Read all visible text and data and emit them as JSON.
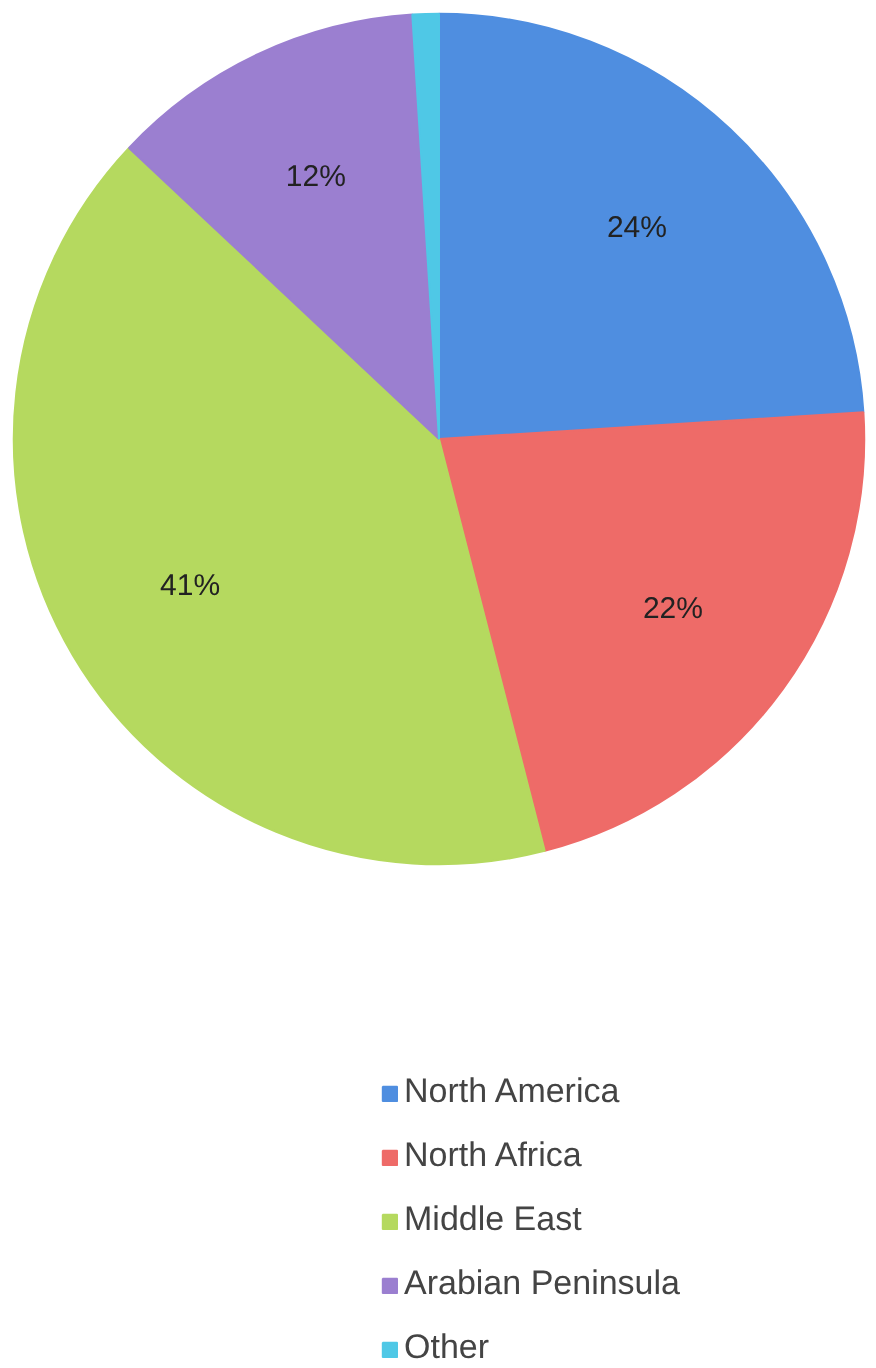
{
  "chart_data": {
    "type": "pie",
    "categories": [
      "North America",
      "North Africa",
      "Middle East",
      "Arabian Peninsula",
      "Other"
    ],
    "values": [
      24,
      22,
      41,
      12,
      1
    ],
    "colors": [
      "#4f8ee0",
      "#ee6b68",
      "#b5d95f",
      "#9b7fd0",
      "#4fc8e6"
    ],
    "value_labels": [
      "24%",
      "22%",
      "41%",
      "12%",
      null
    ],
    "legend": "bottom"
  }
}
